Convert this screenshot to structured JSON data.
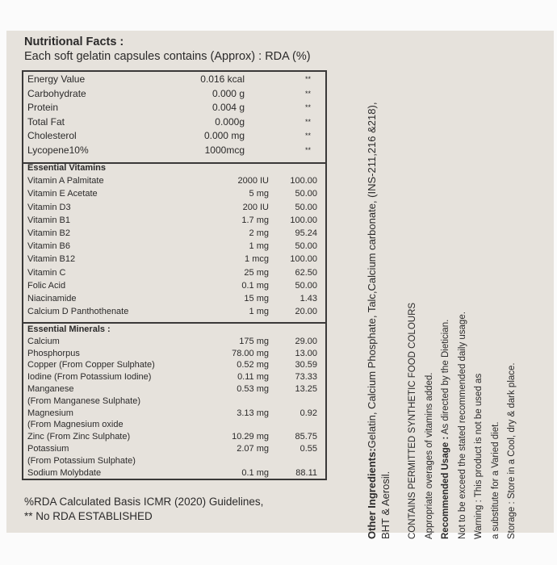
{
  "title": "Nutritional Facts :",
  "subtitle": "Each soft gelatin capsules contains (Approx) : RDA (%)",
  "basic": [
    {
      "name": "Energy Value",
      "amount": "0.016 kcal",
      "rda": "**"
    },
    {
      "name": "Carbohydrate",
      "amount": "0.000 g",
      "rda": "**"
    },
    {
      "name": "Protein",
      "amount": "0.004 g",
      "rda": "**"
    },
    {
      "name": "Total Fat",
      "amount": "0.000g",
      "rda": "**"
    },
    {
      "name": "Cholesterol",
      "amount": "0.000 mg",
      "rda": "**"
    },
    {
      "name": "Lycopene10%",
      "amount": "1000mcg",
      "rda": "**"
    }
  ],
  "vitamins_heading": "Essential Vitamins",
  "vitamins": [
    {
      "name": "Vitamin A Palmitate",
      "amount": "2000 IU",
      "rda": "100.00"
    },
    {
      "name": "Vitamin E Acetate",
      "amount": "5 mg",
      "rda": "50.00"
    },
    {
      "name": "Vitamin D3",
      "amount": "200 IU",
      "rda": "50.00"
    },
    {
      "name": "Vitamin B1",
      "amount": "1.7 mg",
      "rda": "100.00"
    },
    {
      "name": "Vitamin B2",
      "amount": "2 mg",
      "rda": "95.24"
    },
    {
      "name": "Vitamin B6",
      "amount": "1 mg",
      "rda": "50.00"
    },
    {
      "name": "Vitamin B12",
      "amount": "1 mcg",
      "rda": "100.00"
    },
    {
      "name": "Vitamin C",
      "amount": "25 mg",
      "rda": "62.50"
    },
    {
      "name": "Folic Acid",
      "amount": "0.1 mg",
      "rda": "50.00"
    },
    {
      "name": "Niacinamide",
      "amount": "15 mg",
      "rda": "1.43"
    },
    {
      "name": "Calcium D Panthothenate",
      "amount": "1 mg",
      "rda": "20.00"
    }
  ],
  "minerals_heading": "Essential Minerals :",
  "minerals": [
    {
      "name": "Calcium",
      "amount": "175 mg",
      "rda": "29.00"
    },
    {
      "name": "Phosphorpus",
      "amount": "78.00 mg",
      "rda": "13.00"
    },
    {
      "name": "Copper (From Copper Sulphate)",
      "amount": "0.52 mg",
      "rda": "30.59"
    },
    {
      "name": "Iodine (From Potassium Iodine)",
      "amount": "0.11 mg",
      "rda": "73.33"
    },
    {
      "name": "Manganese",
      "amount": "0.53 mg",
      "rda": "13.25"
    },
    {
      "name": "(From Manganese Sulphate)",
      "amount": "",
      "rda": ""
    },
    {
      "name": "Magnesium",
      "amount": "3.13 mg",
      "rda": "0.92"
    },
    {
      "name": "(From Magnesium oxide",
      "amount": "",
      "rda": ""
    },
    {
      "name": "Zinc (From Zinc Sulphate)",
      "amount": "10.29 mg",
      "rda": "85.75"
    },
    {
      "name": "Potassium",
      "amount": "2.07 mg",
      "rda": "0.55"
    },
    {
      "name": "(From Potassium Sulphate)",
      "amount": "",
      "rda": ""
    },
    {
      "name": "Sodium Molybdate",
      "amount": "0.1 mg",
      "rda": "88.11"
    }
  ],
  "footnotes": [
    "%RDA Calculated Basis ICMR (2020) Guidelines,",
    "** No RDA ESTABLISHED"
  ],
  "side": {
    "ingredients_label": "Other Ingredients:",
    "ingredients": "Gelatin, Calcium Phosphate, Talc,Calcium carbonate, (INS-211,216 &218),",
    "ingredients_2": "BHT & Aerosil.",
    "colours": "CONTAINS PERMITTED SYNTHETIC FOOD COLOURS",
    "overages": "Appropriate overages of vitamins added.",
    "usage_label": "Recommended Usage :",
    "usage": " As directed by the Dietician.",
    "exceed": "Not to be exceed the stated recommended daily usage.",
    "warning": "Warning : This product is not be used as",
    "warning_2": "a substitute for a Varied diet.",
    "storage": "Storage : Store in a Cool, dry & dark place."
  }
}
